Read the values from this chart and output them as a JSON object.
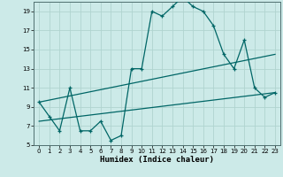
{
  "xlabel": "Humidex (Indice chaleur)",
  "bg_color": "#cceae8",
  "grid_color": "#b0d4d0",
  "line_color": "#006666",
  "xlim": [
    -0.5,
    23.5
  ],
  "ylim": [
    5,
    20
  ],
  "xticks": [
    0,
    1,
    2,
    3,
    4,
    5,
    6,
    7,
    8,
    9,
    10,
    11,
    12,
    13,
    14,
    15,
    16,
    17,
    18,
    19,
    20,
    21,
    22,
    23
  ],
  "yticks": [
    5,
    7,
    9,
    11,
    13,
    15,
    17,
    19
  ],
  "series1_x": [
    0,
    1,
    2,
    3,
    4,
    5,
    6,
    7,
    8,
    9,
    10,
    11,
    12,
    13,
    14,
    15,
    16,
    17,
    18,
    19,
    20,
    21,
    22,
    23
  ],
  "series1_y": [
    9.5,
    8.0,
    6.5,
    11.0,
    6.5,
    6.5,
    7.5,
    5.5,
    6.0,
    13.0,
    13.0,
    19.0,
    18.5,
    19.5,
    20.5,
    19.5,
    19.0,
    17.5,
    14.5,
    13.0,
    16.0,
    11.0,
    10.0,
    10.5
  ],
  "series2_x": [
    0,
    23
  ],
  "series2_y": [
    7.5,
    10.5
  ],
  "series3_x": [
    0,
    23
  ],
  "series3_y": [
    9.5,
    14.5
  ]
}
